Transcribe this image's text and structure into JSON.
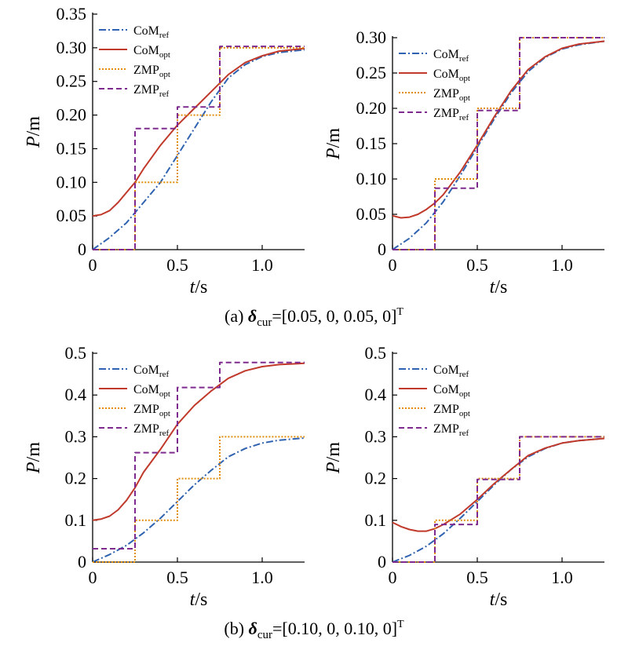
{
  "colors": {
    "com_ref": "#2f62b0",
    "com_opt": "#c0392b",
    "zmp_opt": "#e08e0b",
    "zmp_ref": "#7e2a8e"
  },
  "legend": [
    {
      "key": "com_ref",
      "base": "CoM",
      "sub": "ref",
      "style": "dashdot"
    },
    {
      "key": "com_opt",
      "base": "CoM",
      "sub": "opt",
      "style": "solid"
    },
    {
      "key": "zmp_opt",
      "base": "ZMP",
      "sub": "opt",
      "style": "dotted"
    },
    {
      "key": "zmp_ref",
      "base": "ZMP",
      "sub": "ref",
      "style": "dashed"
    }
  ],
  "axis_labels": {
    "x_italic": "t",
    "x_unit": "/s",
    "y_italic": "P",
    "y_unit": "/m"
  },
  "captions": {
    "a": {
      "pre": "(a) ",
      "sym": "δ",
      "sub": "cur",
      "vec": "=[0.05, 0, 0.05, 0]",
      "sup": "T"
    },
    "b": {
      "pre": "(b) ",
      "sym": "δ",
      "sub": "cur",
      "vec": "=[0.10, 0, 0.10, 0]",
      "sup": "T"
    }
  },
  "chart_data": [
    {
      "type": "line",
      "panel": "a-left",
      "xlim": [
        0,
        1.25
      ],
      "ylim": [
        0,
        0.35
      ],
      "xticks": [
        "0",
        "0.5",
        "1.0"
      ],
      "xtick_values": [
        0,
        0.5,
        1.0
      ],
      "yticks": [
        "0",
        "0.05",
        "0.10",
        "0.15",
        "0.20",
        "0.25",
        "0.30",
        "0.35"
      ],
      "ytick_values": [
        0,
        0.05,
        0.1,
        0.15,
        0.2,
        0.25,
        0.3,
        0.35
      ],
      "series": [
        {
          "name": "CoMref",
          "key": "com_ref",
          "x": [
            0,
            0.1,
            0.2,
            0.3,
            0.4,
            0.5,
            0.6,
            0.7,
            0.8,
            0.9,
            1.0,
            1.1,
            1.25
          ],
          "y": [
            0,
            0.018,
            0.04,
            0.07,
            0.1,
            0.14,
            0.18,
            0.22,
            0.255,
            0.275,
            0.287,
            0.293,
            0.297
          ]
        },
        {
          "name": "CoMopt",
          "key": "com_opt",
          "x": [
            0,
            0.05,
            0.1,
            0.15,
            0.2,
            0.25,
            0.3,
            0.4,
            0.5,
            0.6,
            0.7,
            0.8,
            0.9,
            1.0,
            1.1,
            1.25
          ],
          "y": [
            0.05,
            0.052,
            0.058,
            0.07,
            0.085,
            0.1,
            0.12,
            0.155,
            0.185,
            0.21,
            0.235,
            0.26,
            0.278,
            0.288,
            0.295,
            0.299
          ]
        },
        {
          "name": "ZMPopt",
          "key": "zmp_opt",
          "x": [
            0,
            0.25,
            0.25,
            0.5,
            0.5,
            0.75,
            0.75,
            1.25
          ],
          "y": [
            0,
            0,
            0.1,
            0.1,
            0.2,
            0.2,
            0.3,
            0.3
          ]
        },
        {
          "name": "ZMPref",
          "key": "zmp_ref",
          "x": [
            0,
            0.25,
            0.25,
            0.5,
            0.5,
            0.75,
            0.75,
            1.25
          ],
          "y": [
            0,
            0,
            0.18,
            0.18,
            0.212,
            0.212,
            0.302,
            0.302
          ]
        }
      ]
    },
    {
      "type": "line",
      "panel": "a-right",
      "xlim": [
        0,
        1.25
      ],
      "ylim": [
        0,
        0.3
      ],
      "xticks": [
        "0",
        "0.5",
        "1.0"
      ],
      "xtick_values": [
        0,
        0.5,
        1.0
      ],
      "yticks": [
        "0",
        "0.05",
        "0.10",
        "0.15",
        "0.20",
        "0.25",
        "0.30"
      ],
      "ytick_values": [
        0,
        0.05,
        0.1,
        0.15,
        0.2,
        0.25,
        0.3
      ],
      "series": [
        {
          "name": "CoMref",
          "key": "com_ref",
          "x": [
            0,
            0.1,
            0.2,
            0.3,
            0.4,
            0.5,
            0.6,
            0.7,
            0.8,
            0.9,
            1.0,
            1.1,
            1.25
          ],
          "y": [
            0,
            0.016,
            0.038,
            0.068,
            0.105,
            0.145,
            0.185,
            0.222,
            0.252,
            0.272,
            0.284,
            0.29,
            0.295
          ]
        },
        {
          "name": "CoMopt",
          "key": "com_opt",
          "x": [
            0,
            0.05,
            0.1,
            0.15,
            0.2,
            0.25,
            0.3,
            0.4,
            0.5,
            0.6,
            0.7,
            0.8,
            0.9,
            1.0,
            1.1,
            1.25
          ],
          "y": [
            0.048,
            0.045,
            0.046,
            0.05,
            0.057,
            0.066,
            0.078,
            0.11,
            0.148,
            0.188,
            0.225,
            0.255,
            0.273,
            0.285,
            0.291,
            0.295
          ]
        },
        {
          "name": "ZMPopt",
          "key": "zmp_opt",
          "x": [
            0,
            0.25,
            0.25,
            0.5,
            0.5,
            0.75,
            0.75,
            1.25
          ],
          "y": [
            0,
            0,
            0.1,
            0.1,
            0.2,
            0.2,
            0.3,
            0.3
          ]
        },
        {
          "name": "ZMPref",
          "key": "zmp_ref",
          "x": [
            0,
            0.25,
            0.25,
            0.5,
            0.5,
            0.75,
            0.75,
            1.25
          ],
          "y": [
            0,
            0,
            0.087,
            0.087,
            0.197,
            0.197,
            0.3,
            0.3
          ]
        }
      ]
    },
    {
      "type": "line",
      "panel": "b-left",
      "xlim": [
        0,
        1.25
      ],
      "ylim": [
        0,
        0.5
      ],
      "xticks": [
        "0",
        "0.5",
        "1.0"
      ],
      "xtick_values": [
        0,
        0.5,
        1.0
      ],
      "yticks": [
        "0",
        "0.1",
        "0.2",
        "0.3",
        "0.4",
        "0.5"
      ],
      "ytick_values": [
        0,
        0.1,
        0.2,
        0.3,
        0.4,
        0.5
      ],
      "series": [
        {
          "name": "CoMref",
          "key": "com_ref",
          "x": [
            0,
            0.1,
            0.2,
            0.3,
            0.4,
            0.5,
            0.6,
            0.7,
            0.8,
            0.9,
            1.0,
            1.1,
            1.25
          ],
          "y": [
            0,
            0.018,
            0.04,
            0.07,
            0.105,
            0.145,
            0.185,
            0.22,
            0.252,
            0.272,
            0.285,
            0.292,
            0.297
          ]
        },
        {
          "name": "CoMopt",
          "key": "com_opt",
          "x": [
            0,
            0.05,
            0.1,
            0.15,
            0.2,
            0.25,
            0.3,
            0.4,
            0.5,
            0.6,
            0.7,
            0.8,
            0.9,
            1.0,
            1.1,
            1.25
          ],
          "y": [
            0.1,
            0.103,
            0.11,
            0.125,
            0.148,
            0.178,
            0.215,
            0.27,
            0.33,
            0.375,
            0.41,
            0.44,
            0.458,
            0.468,
            0.473,
            0.476
          ]
        },
        {
          "name": "ZMPopt",
          "key": "zmp_opt",
          "x": [
            0,
            0.25,
            0.25,
            0.5,
            0.5,
            0.75,
            0.75,
            1.25
          ],
          "y": [
            0,
            0,
            0.1,
            0.1,
            0.2,
            0.2,
            0.3,
            0.3
          ]
        },
        {
          "name": "ZMPref",
          "key": "zmp_ref",
          "x": [
            0,
            0.25,
            0.25,
            0.5,
            0.5,
            0.75,
            0.75,
            1.25
          ],
          "y": [
            0.032,
            0.032,
            0.262,
            0.262,
            0.418,
            0.418,
            0.478,
            0.478
          ]
        }
      ]
    },
    {
      "type": "line",
      "panel": "b-right",
      "xlim": [
        0,
        1.25
      ],
      "ylim": [
        0,
        0.5
      ],
      "xticks": [
        "0",
        "0.5",
        "1.0"
      ],
      "xtick_values": [
        0,
        0.5,
        1.0
      ],
      "yticks": [
        "0",
        "0.1",
        "0.2",
        "0.3",
        "0.4",
        "0.5"
      ],
      "ytick_values": [
        0,
        0.1,
        0.2,
        0.3,
        0.4,
        0.5
      ],
      "series": [
        {
          "name": "CoMref",
          "key": "com_ref",
          "x": [
            0,
            0.1,
            0.2,
            0.3,
            0.4,
            0.5,
            0.6,
            0.7,
            0.8,
            0.9,
            1.0,
            1.1,
            1.25
          ],
          "y": [
            0,
            0.016,
            0.038,
            0.068,
            0.105,
            0.145,
            0.185,
            0.222,
            0.252,
            0.272,
            0.285,
            0.291,
            0.296
          ]
        },
        {
          "name": "CoMopt",
          "key": "com_opt",
          "x": [
            0,
            0.05,
            0.1,
            0.15,
            0.2,
            0.25,
            0.3,
            0.4,
            0.5,
            0.6,
            0.7,
            0.8,
            0.9,
            1.0,
            1.1,
            1.25
          ],
          "y": [
            0.095,
            0.085,
            0.078,
            0.074,
            0.074,
            0.08,
            0.09,
            0.115,
            0.15,
            0.188,
            0.222,
            0.255,
            0.273,
            0.285,
            0.291,
            0.296
          ]
        },
        {
          "name": "ZMPopt",
          "key": "zmp_opt",
          "x": [
            0,
            0.25,
            0.25,
            0.5,
            0.5,
            0.75,
            0.75,
            1.25
          ],
          "y": [
            0,
            0,
            0.1,
            0.1,
            0.2,
            0.2,
            0.3,
            0.3
          ]
        },
        {
          "name": "ZMPref",
          "key": "zmp_ref",
          "x": [
            0,
            0.25,
            0.25,
            0.5,
            0.5,
            0.75,
            0.75,
            1.25
          ],
          "y": [
            0,
            0,
            0.09,
            0.09,
            0.198,
            0.198,
            0.3,
            0.3
          ]
        }
      ]
    }
  ]
}
